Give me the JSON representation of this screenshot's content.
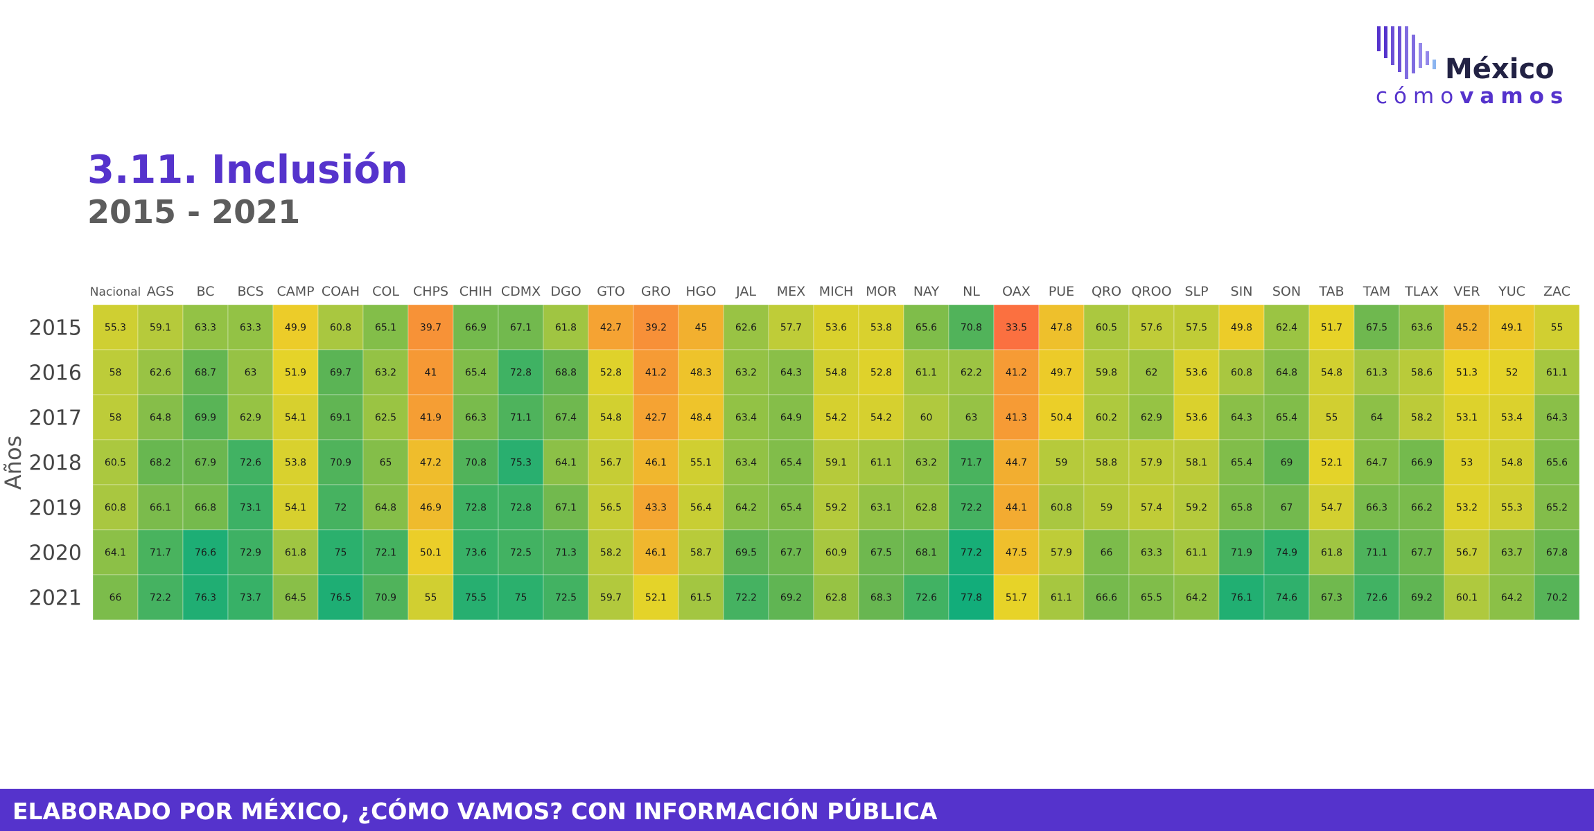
{
  "header": {
    "title": "3.11. Inclusión",
    "subtitle": "2015 - 2021"
  },
  "logo": {
    "word": "México",
    "sub_light": "cómo",
    "sub_bold": "vamos",
    "bar_colors": [
      "#5533cc",
      "#6a4fd6",
      "#7f6be0",
      "#9488ea",
      "#8ab4f0"
    ]
  },
  "footer": {
    "text": "ELABORADO POR MÉXICO, ¿CÓMO VAMOS? CON INFORMACIÓN PÚBLICA"
  },
  "chart_data": {
    "type": "heatmap",
    "xlabel": "",
    "ylabel": "Años",
    "x": [
      "Nacional",
      "AGS",
      "BC",
      "BCS",
      "CAMP",
      "COAH",
      "COL",
      "CHPS",
      "CHIH",
      "CDMX",
      "DGO",
      "GTO",
      "GRO",
      "HGO",
      "JAL",
      "MEX",
      "MICH",
      "MOR",
      "NAY",
      "NL",
      "OAX",
      "PUE",
      "QRO",
      "QROO",
      "SLP",
      "SIN",
      "SON",
      "TAB",
      "TAM",
      "TLAX",
      "VER",
      "YUC",
      "ZAC"
    ],
    "y": [
      "2015",
      "2016",
      "2017",
      "2018",
      "2019",
      "2020",
      "2021"
    ],
    "values": [
      [
        55.3,
        59.1,
        63.3,
        63.3,
        49.9,
        60.8,
        65.1,
        39.7,
        66.9,
        67.1,
        61.8,
        42.7,
        39.2,
        45,
        62.6,
        57.7,
        53.6,
        53.8,
        65.6,
        70.8,
        33.5,
        47.8,
        60.5,
        57.6,
        57.5,
        49.8,
        62.4,
        51.7,
        67.5,
        63.6,
        45.2,
        49.1,
        55
      ],
      [
        58,
        62.6,
        68.7,
        63,
        51.9,
        69.7,
        63.2,
        41,
        65.4,
        72.8,
        68.8,
        52.8,
        41.2,
        48.3,
        63.2,
        64.3,
        54.8,
        52.8,
        61.1,
        62.2,
        41.2,
        49.7,
        59.8,
        62,
        53.6,
        60.8,
        64.8,
        54.8,
        61.3,
        58.6,
        51.3,
        52,
        61.1
      ],
      [
        58,
        64.8,
        69.9,
        62.9,
        54.1,
        69.1,
        62.5,
        41.9,
        66.3,
        71.1,
        67.4,
        54.8,
        42.7,
        48.4,
        63.4,
        64.9,
        54.2,
        54.2,
        60,
        63,
        41.3,
        50.4,
        60.2,
        62.9,
        53.6,
        64.3,
        65.4,
        55,
        64,
        58.2,
        53.1,
        53.4,
        64.3
      ],
      [
        60.5,
        68.2,
        67.9,
        72.6,
        53.8,
        70.9,
        65,
        47.2,
        70.8,
        75.3,
        64.1,
        56.7,
        46.1,
        55.1,
        63.4,
        65.4,
        59.1,
        61.1,
        63.2,
        71.7,
        44.7,
        59,
        58.8,
        57.9,
        58.1,
        65.4,
        69,
        52.1,
        64.7,
        66.9,
        53,
        54.8,
        65.6
      ],
      [
        60.8,
        66.1,
        66.8,
        73.1,
        54.1,
        72,
        64.8,
        46.9,
        72.8,
        72.8,
        67.1,
        56.5,
        43.3,
        56.4,
        64.2,
        65.4,
        59.2,
        63.1,
        62.8,
        72.2,
        44.1,
        60.8,
        59,
        57.4,
        59.2,
        65.8,
        67,
        54.7,
        66.3,
        66.2,
        53.2,
        55.3,
        65.2
      ],
      [
        64.1,
        71.7,
        76.6,
        72.9,
        61.8,
        75,
        72.1,
        50.1,
        73.6,
        72.5,
        71.3,
        58.2,
        46.1,
        58.7,
        69.5,
        67.7,
        60.9,
        67.5,
        68.1,
        77.2,
        47.5,
        57.9,
        66,
        63.3,
        61.1,
        71.9,
        74.9,
        61.8,
        71.1,
        67.7,
        56.7,
        63.7,
        67.8
      ],
      [
        66,
        72.2,
        76.3,
        73.7,
        64.5,
        76.5,
        70.9,
        55,
        75.5,
        75,
        72.5,
        59.7,
        52.1,
        61.5,
        72.2,
        69.2,
        62.8,
        68.3,
        72.6,
        77.8,
        51.7,
        61.1,
        66.6,
        65.5,
        64.2,
        76.1,
        74.6,
        67.3,
        72.6,
        69.2,
        60.1,
        64.2,
        70.2
      ]
    ],
    "color_scale": [
      "#fb7040",
      "#f5a133",
      "#ead427",
      "#afc93e",
      "#62b552",
      "#12ad7a"
    ],
    "grid": false,
    "legend": "none"
  }
}
